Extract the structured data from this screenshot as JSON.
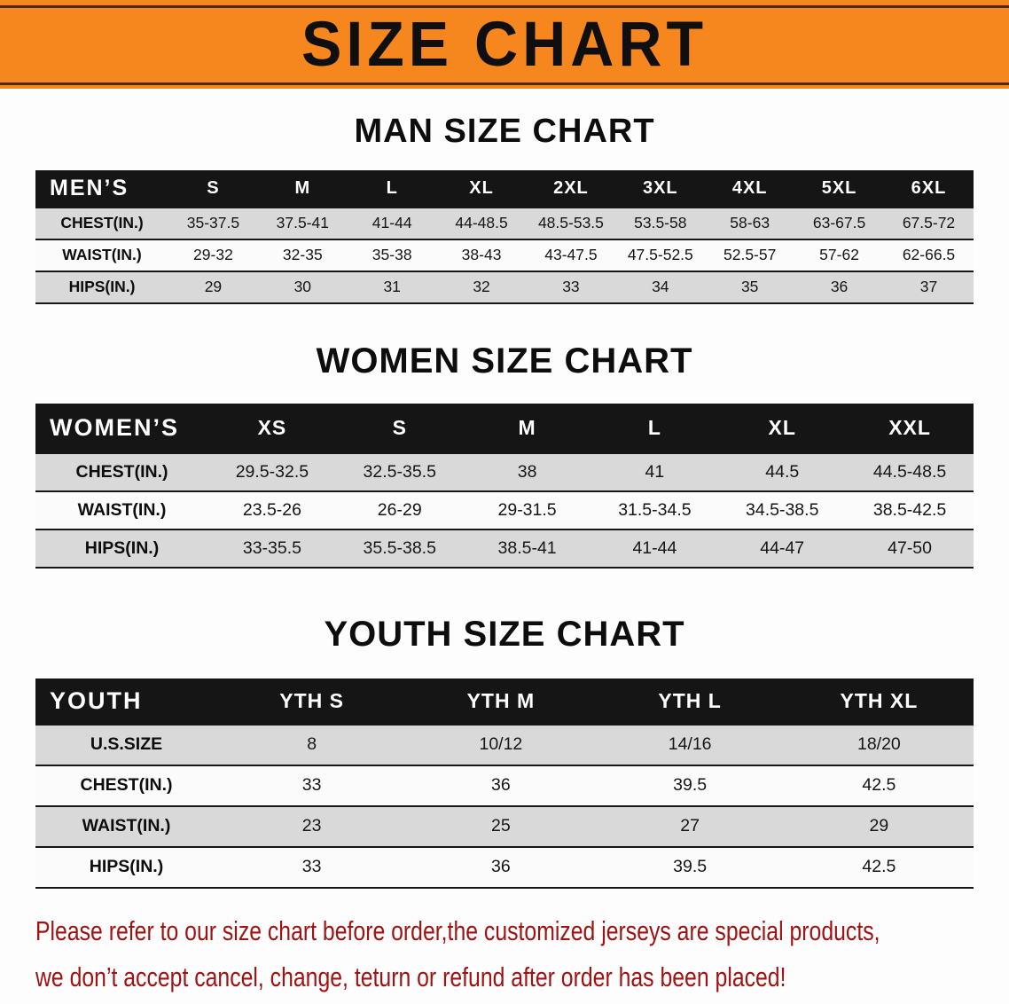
{
  "banner": {
    "title": "SIZE CHART"
  },
  "sections": [
    {
      "heading": "MAN SIZE CHART",
      "table": {
        "header": [
          "MEN’S",
          "S",
          "M",
          "L",
          "XL",
          "2XL",
          "3XL",
          "4XL",
          "5XL",
          "6XL"
        ],
        "rows": [
          [
            "CHEST(IN.)",
            "35-37.5",
            "37.5-41",
            "41-44",
            "44-48.5",
            "48.5-53.5",
            "53.5-58",
            "58-63",
            "63-67.5",
            "67.5-72"
          ],
          [
            "WAIST(IN.)",
            "29-32",
            "32-35",
            "35-38",
            "38-43",
            "43-47.5",
            "47.5-52.5",
            "52.5-57",
            "57-62",
            "62-66.5"
          ],
          [
            "HIPS(IN.)",
            "29",
            "30",
            "31",
            "32",
            "33",
            "34",
            "35",
            "36",
            "37"
          ]
        ]
      }
    },
    {
      "heading": "WOMEN SIZE CHART",
      "table": {
        "header": [
          "WOMEN’S",
          "XS",
          "S",
          "M",
          "L",
          "XL",
          "XXL"
        ],
        "rows": [
          [
            "CHEST(IN.)",
            "29.5-32.5",
            "32.5-35.5",
            "38",
            "41",
            "44.5",
            "44.5-48.5"
          ],
          [
            "WAIST(IN.)",
            "23.5-26",
            "26-29",
            "29-31.5",
            "31.5-34.5",
            "34.5-38.5",
            "38.5-42.5"
          ],
          [
            "HIPS(IN.)",
            "33-35.5",
            "35.5-38.5",
            "38.5-41",
            "41-44",
            "44-47",
            "47-50"
          ]
        ]
      }
    },
    {
      "heading": "YOUTH SIZE CHART",
      "table": {
        "header": [
          "YOUTH",
          "YTH S",
          "YTH M",
          "YTH L",
          "YTH XL"
        ],
        "rows": [
          [
            "U.S.SIZE",
            "8",
            "10/12",
            "14/16",
            "18/20"
          ],
          [
            "CHEST(IN.)",
            "33",
            "36",
            "39.5",
            "42.5"
          ],
          [
            "WAIST(IN.)",
            "23",
            "25",
            "27",
            "29"
          ],
          [
            "HIPS(IN.)",
            "33",
            "36",
            "39.5",
            "42.5"
          ]
        ]
      }
    }
  ],
  "notice": {
    "lines": [
      "Please refer to our size chart before order,the customized jerseys are special products,",
      "we don’t accept cancel, change, teturn or refund after order has been placed!"
    ]
  },
  "colors": {
    "banner_bg": "#f6861e",
    "table_header_bg": "#151515",
    "row_shaded": "#d9d9d9",
    "row_plain": "#fbfbfb",
    "notice_text": "#9e1212"
  }
}
